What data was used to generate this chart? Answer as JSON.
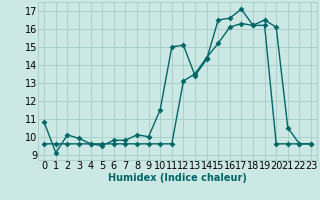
{
  "xlabel": "Humidex (Indice chaleur)",
  "bg_color": "#cce8e4",
  "grid_color": "#aad0cc",
  "line_color": "#006666",
  "xlim": [
    -0.5,
    23.5
  ],
  "ylim": [
    8.7,
    17.5
  ],
  "yticks": [
    9,
    10,
    11,
    12,
    13,
    14,
    15,
    16,
    17
  ],
  "xticks": [
    0,
    1,
    2,
    3,
    4,
    5,
    6,
    7,
    8,
    9,
    10,
    11,
    12,
    13,
    14,
    15,
    16,
    17,
    18,
    19,
    20,
    21,
    22,
    23
  ],
  "line1_x": [
    0,
    1,
    2,
    3,
    4,
    5,
    6,
    7,
    8,
    9,
    10,
    11,
    12,
    13,
    14,
    15,
    16,
    17,
    18,
    19,
    20,
    21,
    22,
    23
  ],
  "line1_y": [
    10.8,
    9.1,
    10.1,
    9.9,
    9.6,
    9.5,
    9.8,
    9.8,
    10.1,
    10.0,
    11.5,
    15.0,
    15.1,
    13.4,
    14.3,
    16.5,
    16.6,
    17.1,
    16.2,
    16.5,
    16.1,
    10.5,
    9.6,
    9.6
  ],
  "line2_x": [
    0,
    1,
    2,
    3,
    4,
    5,
    6,
    7,
    8,
    9,
    10,
    11,
    12,
    13,
    14,
    15,
    16,
    17,
    18,
    19,
    20,
    21,
    22,
    23
  ],
  "line2_y": [
    9.6,
    9.6,
    9.6,
    9.6,
    9.6,
    9.6,
    9.6,
    9.6,
    9.6,
    9.6,
    9.6,
    9.6,
    13.1,
    13.5,
    14.4,
    15.2,
    16.1,
    16.3,
    16.2,
    16.2,
    9.6,
    9.6,
    9.6,
    9.6
  ],
  "tick_fontsize": 7,
  "xlabel_fontsize": 7,
  "marker_size": 3
}
